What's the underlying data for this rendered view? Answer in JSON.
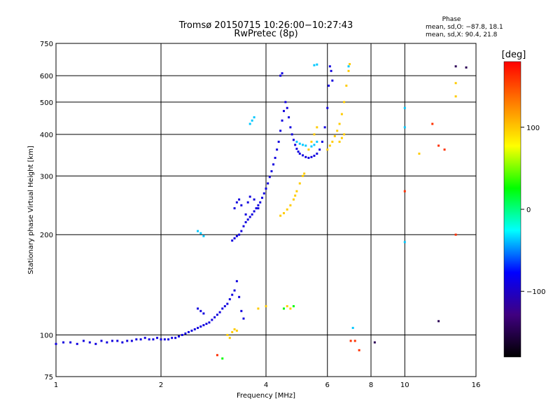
{
  "chart_data": {
    "type": "scatter",
    "title": "Tromsø 20150715 10:26:00−10:27:43",
    "subtitle": "RwPretec (8p)",
    "xlabel": "Frequency [MHz]",
    "ylabel": "Stationary phase Virtual Height [km]",
    "x_scale": "log",
    "y_scale": "log",
    "xlim": [
      1,
      16
    ],
    "ylim": [
      75,
      750
    ],
    "grid": true,
    "x_ticks": [
      1,
      2,
      4,
      6,
      8,
      10,
      16
    ],
    "x_tick_labels": [
      "1",
      "2",
      "4",
      "6",
      "8",
      "10",
      "16"
    ],
    "y_ticks": [
      75,
      100,
      200,
      300,
      400,
      500,
      600,
      750
    ],
    "y_tick_labels": [
      "75",
      "100",
      "200",
      "300",
      "400",
      "500",
      "600",
      "750"
    ],
    "stats": {
      "header": "Phase",
      "line_o": "mean, sd,O: −87.8, 18.1",
      "line_x": "mean, sd,X:  90.4, 21.8"
    },
    "colorbar": {
      "label": "[deg]",
      "range": [
        -180,
        180
      ],
      "ticks": [
        100,
        0,
        -100
      ],
      "tick_labels": [
        "100",
        "0",
        "−100"
      ],
      "colors": [
        "#ff0000",
        "#ff8000",
        "#ffff00",
        "#00ff00",
        "#00ffff",
        "#0000ff",
        "#400080",
        "#000000"
      ]
    },
    "series": [
      {
        "color_phase": -105,
        "points": [
          [
            1.0,
            94
          ],
          [
            1.05,
            95
          ],
          [
            1.1,
            95
          ],
          [
            1.15,
            94
          ],
          [
            1.2,
            96
          ],
          [
            1.25,
            95
          ],
          [
            1.3,
            94
          ],
          [
            1.35,
            96
          ],
          [
            1.4,
            95
          ],
          [
            1.45,
            96
          ],
          [
            1.5,
            96
          ],
          [
            1.55,
            95
          ],
          [
            1.6,
            96
          ],
          [
            1.65,
            96
          ],
          [
            1.7,
            97
          ],
          [
            1.75,
            97
          ],
          [
            1.8,
            98
          ],
          [
            1.85,
            97
          ],
          [
            1.9,
            97
          ],
          [
            1.95,
            98
          ],
          [
            2.0,
            97
          ],
          [
            2.05,
            97
          ],
          [
            2.1,
            97
          ],
          [
            2.15,
            98
          ],
          [
            2.2,
            98
          ],
          [
            2.25,
            99
          ],
          [
            2.3,
            100
          ],
          [
            2.35,
            101
          ],
          [
            2.4,
            102
          ],
          [
            2.45,
            103
          ],
          [
            2.5,
            104
          ],
          [
            2.55,
            105
          ],
          [
            2.6,
            106
          ],
          [
            2.65,
            107
          ],
          [
            2.7,
            108
          ],
          [
            2.75,
            109
          ],
          [
            2.8,
            111
          ],
          [
            2.85,
            113
          ],
          [
            2.9,
            115
          ],
          [
            2.95,
            117
          ],
          [
            3.0,
            120
          ],
          [
            3.05,
            122
          ],
          [
            3.1,
            124
          ],
          [
            3.15,
            128
          ],
          [
            3.2,
            132
          ],
          [
            3.25,
            136
          ],
          [
            3.3,
            145
          ],
          [
            3.35,
            130
          ],
          [
            3.4,
            118
          ],
          [
            3.45,
            112
          ],
          [
            2.55,
            120
          ],
          [
            2.6,
            118
          ],
          [
            2.65,
            116
          ],
          [
            3.2,
            192
          ],
          [
            3.25,
            195
          ],
          [
            3.3,
            198
          ],
          [
            3.35,
            200
          ],
          [
            3.4,
            205
          ],
          [
            3.45,
            212
          ],
          [
            3.5,
            218
          ],
          [
            3.55,
            222
          ],
          [
            3.6,
            226
          ],
          [
            3.65,
            230
          ],
          [
            3.7,
            235
          ],
          [
            3.75,
            240
          ],
          [
            3.8,
            245
          ],
          [
            3.85,
            250
          ],
          [
            3.9,
            258
          ],
          [
            3.95,
            266
          ],
          [
            4.0,
            275
          ],
          [
            4.05,
            285
          ],
          [
            4.1,
            298
          ],
          [
            4.15,
            310
          ],
          [
            4.2,
            325
          ],
          [
            4.25,
            340
          ],
          [
            4.3,
            360
          ],
          [
            4.35,
            380
          ],
          [
            4.4,
            410
          ],
          [
            4.45,
            440
          ],
          [
            4.5,
            470
          ],
          [
            4.55,
            500
          ],
          [
            4.6,
            480
          ],
          [
            4.65,
            450
          ],
          [
            4.7,
            420
          ],
          [
            4.75,
            400
          ],
          [
            4.8,
            385
          ],
          [
            4.85,
            372
          ],
          [
            4.9,
            362
          ],
          [
            4.95,
            355
          ],
          [
            5.0,
            350
          ],
          [
            5.1,
            346
          ],
          [
            5.2,
            342
          ],
          [
            5.3,
            340
          ],
          [
            5.4,
            342
          ],
          [
            5.5,
            345
          ],
          [
            5.6,
            350
          ],
          [
            5.7,
            360
          ],
          [
            5.8,
            380
          ],
          [
            5.9,
            420
          ],
          [
            6.0,
            480
          ],
          [
            6.05,
            560
          ],
          [
            6.1,
            640
          ],
          [
            3.25,
            240
          ],
          [
            3.3,
            250
          ],
          [
            3.35,
            255
          ],
          [
            3.4,
            245
          ],
          [
            3.5,
            230
          ],
          [
            3.55,
            250
          ],
          [
            3.6,
            260
          ],
          [
            3.7,
            255
          ],
          [
            3.8,
            240
          ],
          [
            4.4,
            600
          ],
          [
            4.45,
            610
          ],
          [
            6.15,
            620
          ],
          [
            6.2,
            580
          ]
        ]
      },
      {
        "color_phase": -30,
        "points": [
          [
            2.55,
            205
          ],
          [
            2.6,
            202
          ],
          [
            2.65,
            198
          ],
          [
            3.6,
            430
          ],
          [
            3.65,
            440
          ],
          [
            3.7,
            450
          ],
          [
            4.9,
            380
          ],
          [
            5.0,
            375
          ],
          [
            5.1,
            372
          ],
          [
            5.2,
            370
          ],
          [
            5.4,
            368
          ],
          [
            5.5,
            372
          ],
          [
            5.6,
            380
          ],
          [
            10.0,
            190
          ],
          [
            10.0,
            480
          ],
          [
            10.0,
            420
          ],
          [
            6.9,
            640
          ],
          [
            7.1,
            105
          ],
          [
            5.5,
            645
          ],
          [
            5.6,
            648
          ]
        ]
      },
      {
        "color_phase": 110,
        "points": [
          [
            4.4,
            228
          ],
          [
            4.5,
            232
          ],
          [
            4.6,
            238
          ],
          [
            4.7,
            245
          ],
          [
            4.8,
            255
          ],
          [
            4.85,
            262
          ],
          [
            4.9,
            270
          ],
          [
            5.0,
            285
          ],
          [
            5.1,
            300
          ],
          [
            5.15,
            305
          ],
          [
            5.3,
            360
          ],
          [
            5.4,
            380
          ],
          [
            5.5,
            400
          ],
          [
            5.6,
            420
          ],
          [
            6.0,
            360
          ],
          [
            6.1,
            370
          ],
          [
            6.2,
            380
          ],
          [
            6.3,
            395
          ],
          [
            6.4,
            410
          ],
          [
            6.5,
            430
          ],
          [
            6.6,
            460
          ],
          [
            6.7,
            500
          ],
          [
            6.8,
            560
          ],
          [
            6.9,
            620
          ],
          [
            6.95,
            650
          ],
          [
            6.5,
            380
          ],
          [
            6.6,
            390
          ],
          [
            6.7,
            400
          ],
          [
            3.1,
            100
          ],
          [
            3.2,
            102
          ],
          [
            3.25,
            104
          ],
          [
            3.3,
            103
          ],
          [
            3.15,
            98
          ],
          [
            4.0,
            122
          ],
          [
            4.6,
            122
          ],
          [
            4.7,
            120
          ],
          [
            3.8,
            120
          ],
          [
            11.0,
            350
          ],
          [
            14.0,
            570
          ],
          [
            14.0,
            520
          ]
        ]
      },
      {
        "color_phase": 165,
        "points": [
          [
            2.9,
            87
          ],
          [
            7.0,
            96
          ],
          [
            7.2,
            96
          ],
          [
            7.4,
            90
          ],
          [
            10.0,
            270
          ],
          [
            12.0,
            430
          ],
          [
            13.0,
            360
          ],
          [
            14.0,
            200
          ],
          [
            12.5,
            370
          ]
        ]
      },
      {
        "color_phase": 20,
        "points": [
          [
            3.0,
            85
          ],
          [
            4.8,
            122
          ],
          [
            4.5,
            120
          ]
        ]
      },
      {
        "color_phase": -160,
        "points": [
          [
            8.2,
            95
          ],
          [
            12.5,
            110
          ],
          [
            14.0,
            640
          ],
          [
            15.0,
            635
          ]
        ]
      }
    ]
  }
}
